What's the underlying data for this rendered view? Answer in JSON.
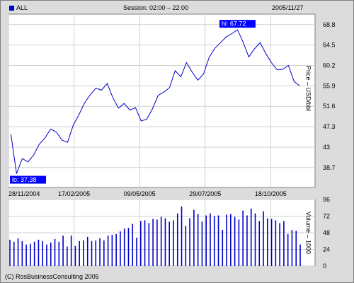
{
  "header": {
    "series_label": "ALL",
    "session": "Session: 02:00 – 22:00",
    "date": "2005/11/27"
  },
  "footer": {
    "copyright": "(C) RosBusinessConsulting 2005"
  },
  "colors": {
    "line": "#0000cc",
    "volume": "#0000cc",
    "label_bg": "#0000ff",
    "grid": "#d0d0d0"
  },
  "chart_data": [
    {
      "type": "line",
      "ylabel": "Price – USD/bbl",
      "ylim": [
        34.5,
        71
      ],
      "yticks": [
        38.7,
        43,
        47.3,
        51.6,
        55.9,
        60.2,
        64.5,
        68.8
      ],
      "x_range": [
        "2004-11-28",
        "2005-11-27"
      ],
      "xtick_labels": [
        "28/11/2004",
        "17/02/2005",
        "09/05/2005",
        "29/07/2005",
        "18/10/2005"
      ],
      "annotations": [
        {
          "text": "hi: 67.72",
          "value": 67.72
        },
        {
          "text": "lo: 37.38",
          "value": 37.38
        }
      ],
      "series": [
        {
          "x": [
            "2004-12-01",
            "2004-12-08",
            "2004-12-15",
            "2004-12-22",
            "2004-12-29",
            "2005-01-05",
            "2005-01-12",
            "2005-01-19",
            "2005-01-26",
            "2005-02-02",
            "2005-02-09",
            "2005-02-16",
            "2005-02-23",
            "2005-03-02",
            "2005-03-09",
            "2005-03-16",
            "2005-03-23",
            "2005-03-30",
            "2005-04-06",
            "2005-04-13",
            "2005-04-20",
            "2005-04-27",
            "2005-05-04",
            "2005-05-11",
            "2005-05-18",
            "2005-05-25",
            "2005-06-01",
            "2005-06-08",
            "2005-06-15",
            "2005-06-22",
            "2005-06-29",
            "2005-07-06",
            "2005-07-13",
            "2005-07-20",
            "2005-07-27",
            "2005-08-03",
            "2005-08-10",
            "2005-08-17",
            "2005-08-24",
            "2005-08-31",
            "2005-09-07",
            "2005-09-14",
            "2005-09-21",
            "2005-09-28",
            "2005-10-05",
            "2005-10-12",
            "2005-10-19",
            "2005-10-26",
            "2005-11-02",
            "2005-11-09",
            "2005-11-16",
            "2005-11-23"
          ],
          "values": [
            45.7,
            37.4,
            40.6,
            39.9,
            41.3,
            43.6,
            44.9,
            46.8,
            46.2,
            44.5,
            44.0,
            47.6,
            49.8,
            52.3,
            54.0,
            55.4,
            55.0,
            56.4,
            53.4,
            51.2,
            52.2,
            50.8,
            51.3,
            48.5,
            48.9,
            51.1,
            53.9,
            54.6,
            55.5,
            59.1,
            57.8,
            60.8,
            58.8,
            57.1,
            58.4,
            61.9,
            63.8,
            65.0,
            66.2,
            66.9,
            67.7,
            65.1,
            62.0,
            63.7,
            65.0,
            62.7,
            60.8,
            59.3,
            59.4,
            60.2,
            56.8,
            55.9
          ]
        }
      ]
    },
    {
      "type": "bar",
      "ylabel": "Volume – 1000",
      "ylim": [
        0,
        96
      ],
      "yticks": [
        0,
        24,
        48,
        72,
        96
      ],
      "series": [
        {
          "values": [
            38,
            35,
            40,
            36,
            31,
            32,
            35,
            38,
            36,
            31,
            34,
            39,
            35,
            44,
            28,
            44,
            29,
            36,
            37,
            42,
            36,
            37,
            40,
            37,
            44,
            45,
            46,
            50,
            54,
            55,
            61,
            41,
            65,
            66,
            62,
            68,
            67,
            71,
            69,
            64,
            66,
            76,
            86,
            58,
            69,
            81,
            75,
            64,
            73,
            76,
            72,
            73,
            52,
            74,
            75,
            71,
            67,
            80,
            73,
            83,
            76,
            65,
            79,
            69,
            68,
            66,
            62,
            65,
            46,
            52,
            51,
            31
          ]
        }
      ]
    }
  ]
}
